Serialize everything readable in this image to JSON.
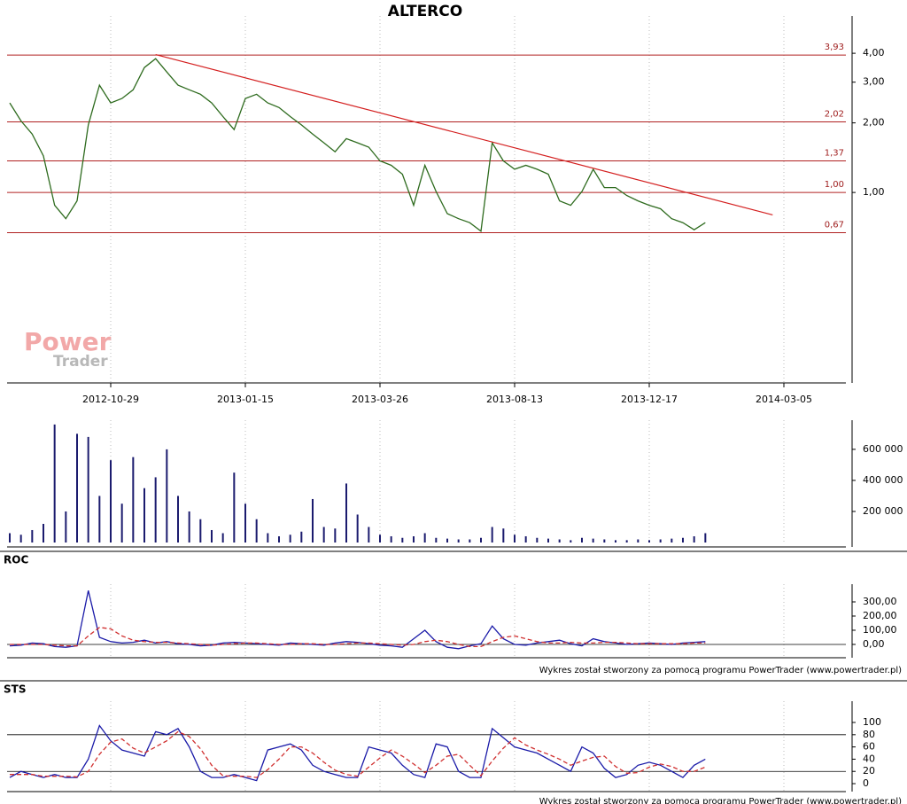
{
  "title": "ALTERCO",
  "watermark": [
    "Power",
    "Trader"
  ],
  "footer": "Wykres został stworzony za pomocą programu PowerTrader (www.powertrader.pl)",
  "chart_data": [
    {
      "type": "line",
      "log_scale": true,
      "categories": [
        null,
        null,
        null,
        null,
        null,
        null,
        null,
        null,
        null,
        "2012-10-29",
        null,
        null,
        null,
        null,
        null,
        null,
        null,
        null,
        null,
        null,
        null,
        "2013-01-15",
        null,
        null,
        null,
        null,
        null,
        null,
        null,
        null,
        null,
        null,
        null,
        "2013-03-26",
        null,
        null,
        null,
        null,
        null,
        null,
        null,
        null,
        null,
        null,
        null,
        "2013-08-13",
        null,
        null,
        null,
        null,
        null,
        null,
        null,
        null,
        null,
        null,
        null,
        "2013-12-17",
        null,
        null,
        null,
        null,
        null,
        null,
        null,
        null,
        null,
        null,
        null,
        "2014-03-05"
      ],
      "series": [
        {
          "color": "#2e6b1e",
          "values": [
            2.44,
            2.04,
            1.79,
            1.44,
            0.88,
            0.77,
            0.92,
            1.96,
            2.91,
            2.44,
            2.55,
            2.78,
            3.47,
            3.79,
            3.32,
            2.91,
            2.78,
            2.66,
            2.44,
            2.13,
            1.87,
            2.55,
            2.66,
            2.44,
            2.33,
            2.13,
            1.96,
            1.79,
            1.64,
            1.5,
            1.71,
            1.64,
            1.57,
            1.37,
            1.31,
            1.2,
            0.88,
            1.31,
            1.01,
            0.81,
            0.77,
            0.74,
            0.68,
            1.64,
            1.37,
            1.26,
            1.31,
            1.26,
            1.2,
            0.92,
            0.88,
            1.01,
            1.26,
            1.05,
            1.05,
            0.97,
            0.92,
            0.88,
            0.85,
            0.77,
            0.74,
            0.69,
            0.74,
            null,
            null,
            null,
            null,
            null,
            null,
            null
          ]
        }
      ],
      "trend_line": {
        "color": "#d42020",
        "x": [
          13,
          68
        ],
        "values": [
          3.95,
          0.8
        ]
      },
      "levels": [
        {
          "value": 3.93,
          "label": "3,93"
        },
        {
          "value": 2.02,
          "label": "2,02"
        },
        {
          "value": 1.37,
          "label": "1,37"
        },
        {
          "value": 1,
          "label": "1,00"
        },
        {
          "value": 0.67,
          "label": "0,67"
        }
      ],
      "ylim": [
        0.15,
        5.6
      ],
      "yticks": [
        {
          "value": 4,
          "label": "4,00"
        },
        {
          "value": 3,
          "label": "3,00"
        },
        {
          "value": 2,
          "label": "2,00"
        },
        {
          "value": 1,
          "label": "1,00"
        }
      ]
    },
    {
      "type": "bar",
      "color": "#1b1b6e",
      "values": [
        60000,
        50000,
        80000,
        120000,
        760000,
        200000,
        700000,
        680000,
        300000,
        530000,
        250000,
        550000,
        350000,
        420000,
        600000,
        300000,
        200000,
        150000,
        80000,
        60000,
        450000,
        250000,
        150000,
        60000,
        40000,
        50000,
        70000,
        280000,
        100000,
        90000,
        380000,
        180000,
        100000,
        50000,
        40000,
        30000,
        40000,
        60000,
        30000,
        25000,
        20000,
        20000,
        30000,
        100000,
        90000,
        50000,
        40000,
        30000,
        25000,
        20000,
        15000,
        30000,
        25000,
        20000,
        15000,
        15000,
        20000,
        15000,
        20000,
        25000,
        30000,
        40000,
        60000,
        null,
        null,
        null,
        null,
        null,
        null,
        null
      ],
      "ylim": [
        0,
        765000
      ],
      "yticks": [
        {
          "value": 200000,
          "label": "200 000"
        },
        {
          "value": 400000,
          "label": "400 000"
        },
        {
          "value": 600000,
          "label": "600 000"
        }
      ]
    },
    {
      "type": "line",
      "title": "ROC",
      "series": [
        {
          "color": "#1a1aa8",
          "values": [
            -10,
            -5,
            10,
            5,
            -15,
            -20,
            -10,
            380,
            50,
            20,
            10,
            15,
            30,
            10,
            20,
            5,
            0,
            -10,
            -5,
            10,
            15,
            10,
            5,
            0,
            -5,
            10,
            5,
            0,
            -5,
            10,
            20,
            15,
            5,
            -5,
            -10,
            -20,
            40,
            100,
            20,
            -20,
            -30,
            -10,
            5,
            130,
            40,
            0,
            -5,
            10,
            20,
            30,
            5,
            -10,
            40,
            20,
            10,
            0,
            5,
            10,
            5,
            0,
            10,
            15,
            20,
            null,
            null,
            null,
            null,
            null,
            null,
            null
          ]
        },
        {
          "color": "#d03030",
          "dashed": true,
          "values": [
            0,
            0,
            0,
            0,
            -5,
            -10,
            -10,
            60,
            120,
            110,
            60,
            30,
            20,
            15,
            15,
            10,
            5,
            0,
            -5,
            0,
            5,
            10,
            10,
            5,
            0,
            0,
            5,
            5,
            0,
            0,
            5,
            10,
            10,
            5,
            0,
            -5,
            0,
            20,
            30,
            20,
            0,
            -15,
            -15,
            20,
            50,
            60,
            40,
            20,
            10,
            10,
            15,
            10,
            10,
            15,
            15,
            10,
            5,
            5,
            5,
            5,
            5,
            10,
            10,
            null,
            null,
            null,
            null,
            null,
            null,
            null
          ]
        }
      ],
      "levels": [
        0
      ],
      "ylim": [
        -94,
        400
      ],
      "yticks": [
        {
          "value": 0,
          "label": "0,00"
        },
        {
          "value": 100,
          "label": "100,00"
        },
        {
          "value": 200,
          "label": "200,00"
        },
        {
          "value": 300,
          "label": "300,00"
        }
      ]
    },
    {
      "type": "line",
      "title": "STS",
      "series": [
        {
          "color": "#1a1aa8",
          "values": [
            10,
            20,
            15,
            10,
            15,
            10,
            10,
            40,
            95,
            70,
            55,
            50,
            45,
            85,
            80,
            90,
            60,
            20,
            10,
            10,
            15,
            10,
            5,
            55,
            60,
            65,
            55,
            30,
            20,
            15,
            10,
            10,
            60,
            55,
            50,
            30,
            15,
            10,
            65,
            60,
            20,
            10,
            10,
            90,
            75,
            60,
            55,
            50,
            40,
            30,
            20,
            60,
            50,
            25,
            10,
            15,
            30,
            35,
            30,
            20,
            10,
            30,
            40,
            null,
            null,
            null,
            null,
            null,
            null,
            null
          ]
        },
        {
          "color": "#d03030",
          "dashed": true,
          "values": [
            15,
            15,
            15,
            12,
            12,
            12,
            11,
            20,
            48,
            68,
            73,
            58,
            50,
            60,
            70,
            85,
            77,
            57,
            30,
            13,
            12,
            12,
            10,
            23,
            40,
            60,
            60,
            50,
            35,
            22,
            15,
            12,
            27,
            42,
            55,
            45,
            32,
            18,
            30,
            45,
            48,
            30,
            13,
            37,
            58,
            75,
            63,
            55,
            48,
            40,
            30,
            37,
            43,
            45,
            28,
            17,
            18,
            27,
            32,
            28,
            20,
            20,
            27,
            null,
            null,
            null,
            null,
            null,
            null,
            null
          ]
        }
      ],
      "levels": [
        20,
        80
      ],
      "ylim": [
        -13,
        129
      ],
      "yticks": [
        0,
        20,
        40,
        60,
        80,
        100
      ]
    }
  ]
}
